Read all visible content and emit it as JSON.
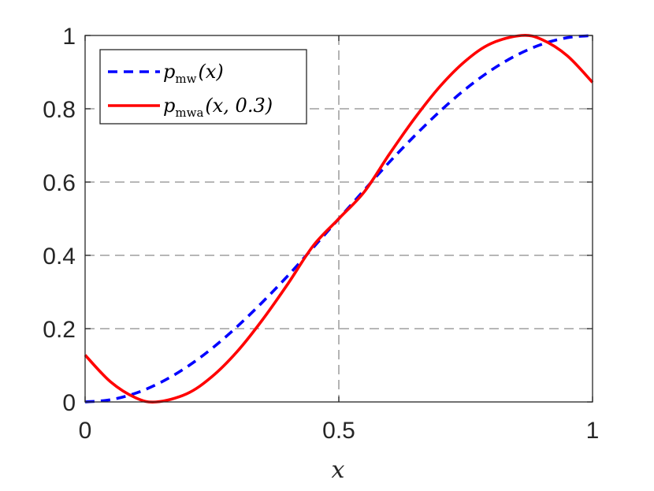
{
  "chart_data": {
    "type": "line",
    "title": "",
    "xlabel": "x",
    "ylabel": "",
    "xlim": [
      0,
      1
    ],
    "ylim": [
      0,
      1
    ],
    "xticks": [
      0,
      0.5,
      1
    ],
    "xtick_labels": [
      "0",
      "0.5",
      "1"
    ],
    "yticks": [
      0,
      0.2,
      0.4,
      0.6,
      0.8,
      1
    ],
    "ytick_labels": [
      "0",
      "0.2",
      "0.4",
      "0.6",
      "0.8",
      "1"
    ],
    "grid": true,
    "legend_position": "top-left",
    "series": [
      {
        "name": "p_mw(x)",
        "legend_base": "p",
        "legend_sub": "mw",
        "legend_args": "(x)",
        "color": "#0000ff",
        "style": "dashed",
        "x": [
          0,
          0.05,
          0.1,
          0.15,
          0.2,
          0.25,
          0.3,
          0.35,
          0.4,
          0.45,
          0.5,
          0.55,
          0.6,
          0.65,
          0.7,
          0.75,
          0.8,
          0.85,
          0.9,
          0.95,
          1
        ],
        "y": [
          0,
          0.006,
          0.024,
          0.054,
          0.095,
          0.146,
          0.206,
          0.273,
          0.345,
          0.422,
          0.5,
          0.578,
          0.655,
          0.727,
          0.794,
          0.854,
          0.905,
          0.946,
          0.976,
          0.994,
          1
        ]
      },
      {
        "name": "p_mwa(x, 0.3)",
        "legend_base": "p",
        "legend_sub": "mwa",
        "legend_args": "(x, 0.3)",
        "color": "#ff0000",
        "style": "solid",
        "x": [
          0,
          0.05,
          0.1,
          0.14,
          0.2,
          0.25,
          0.3,
          0.35,
          0.4,
          0.45,
          0.5,
          0.55,
          0.6,
          0.65,
          0.7,
          0.75,
          0.8,
          0.86,
          0.9,
          0.95,
          1
        ],
        "y": [
          0.128,
          0.055,
          0.011,
          0,
          0.022,
          0.069,
          0.138,
          0.225,
          0.323,
          0.427,
          0.5,
          0.573,
          0.677,
          0.775,
          0.862,
          0.931,
          0.978,
          1,
          0.989,
          0.945,
          0.872
        ]
      }
    ]
  }
}
